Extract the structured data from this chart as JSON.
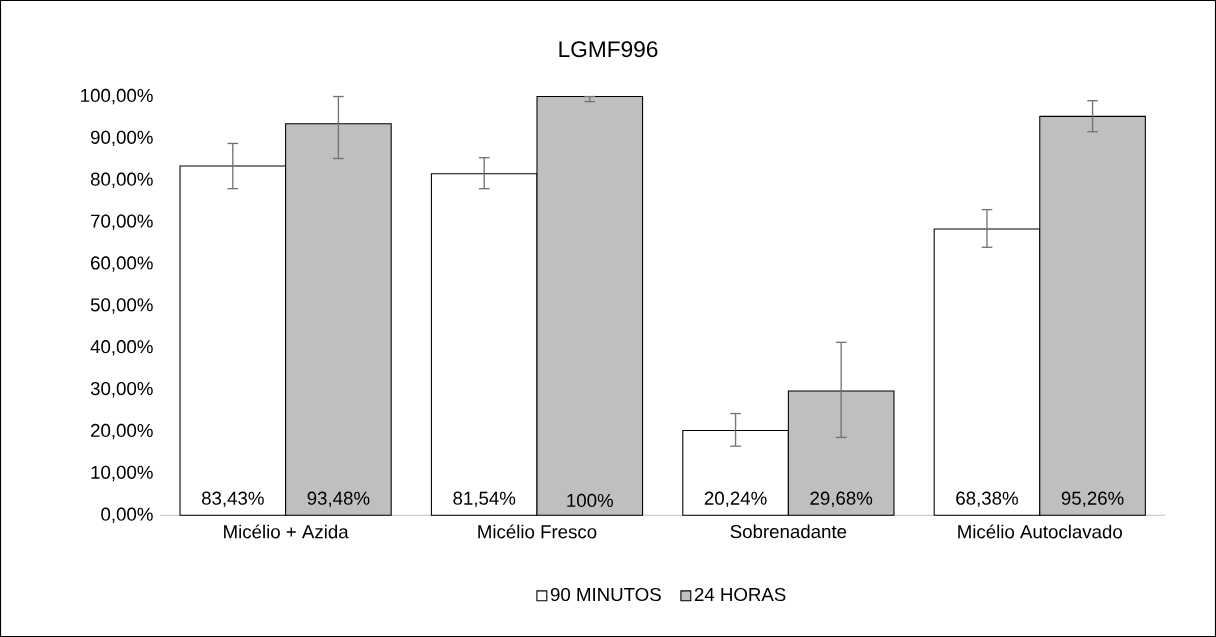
{
  "chart_data": {
    "type": "bar",
    "title": "LGMF996",
    "categories": [
      "Micélio + Azida",
      "Micélio Fresco",
      "Sobrenadante",
      "Micélio Autoclavado"
    ],
    "series": [
      {
        "name": "90 MINUTOS",
        "color": "#ffffff",
        "values": [
          83.43,
          81.54,
          20.24,
          68.38
        ],
        "errors": [
          [
            78.0,
            88.8
          ],
          [
            78.0,
            85.4
          ],
          [
            16.5,
            24.3
          ],
          [
            64.0,
            73.0
          ]
        ],
        "value_labels": [
          "83,43%",
          "81,54%",
          "20,24%",
          "68,38%"
        ]
      },
      {
        "name": "24 HORAS",
        "color": "#bfbfbf",
        "values": [
          93.48,
          100,
          29.68,
          95.26
        ],
        "errors": [
          [
            85.2,
            100
          ],
          [
            98.8,
            100
          ],
          [
            18.6,
            41.3
          ],
          [
            91.6,
            99.0
          ]
        ],
        "value_labels": [
          "93,48%",
          "100%",
          "29,68%",
          "95,26%"
        ]
      }
    ],
    "ylim": [
      0,
      100
    ],
    "yticks": [
      {
        "value": 0,
        "label": "0,00%"
      },
      {
        "value": 10,
        "label": "10,00%"
      },
      {
        "value": 20,
        "label": "20,00%"
      },
      {
        "value": 30,
        "label": "30,00%"
      },
      {
        "value": 40,
        "label": "40,00%"
      },
      {
        "value": 50,
        "label": "50,00%"
      },
      {
        "value": 60,
        "label": "60,00%"
      },
      {
        "value": 70,
        "label": "70,00%"
      },
      {
        "value": 80,
        "label": "80,00%"
      },
      {
        "value": 90,
        "label": "90,00%"
      },
      {
        "value": 100,
        "label": "100,00%"
      }
    ],
    "legend": "bottom"
  }
}
